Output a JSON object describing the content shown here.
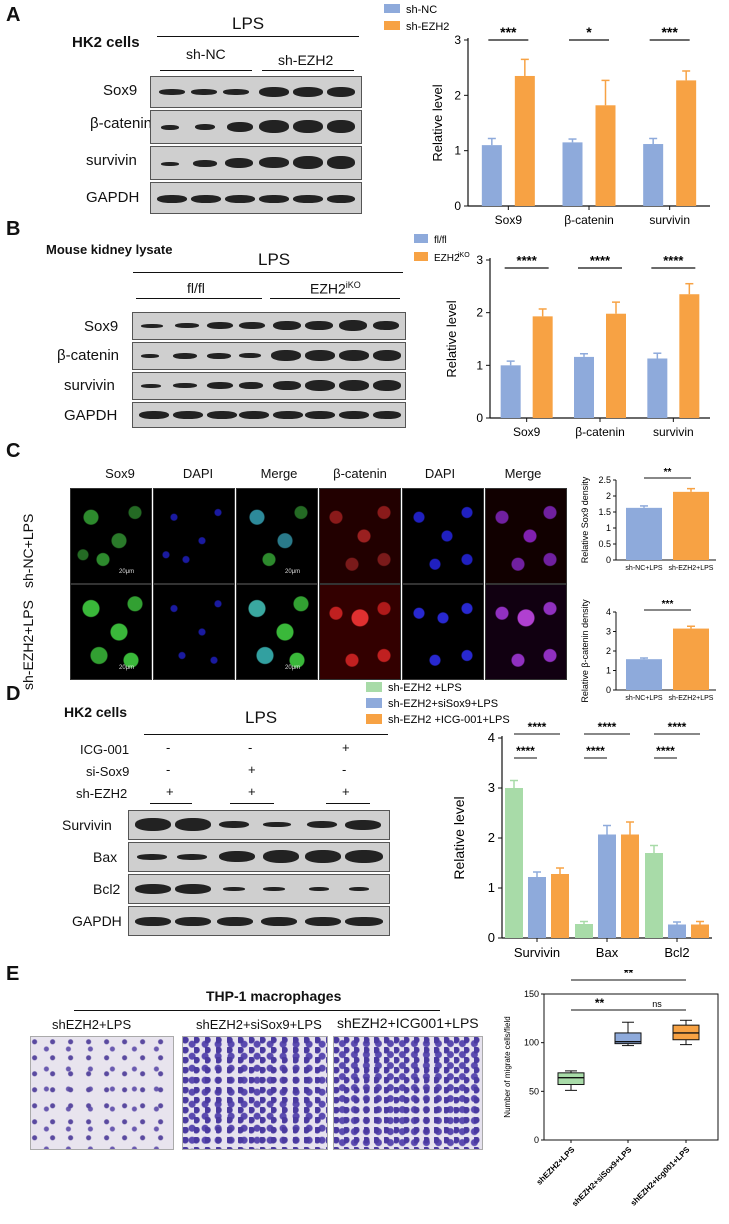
{
  "panels": {
    "A": {
      "letter": "A",
      "cell_label": "HK2 cells",
      "treatment": "LPS",
      "groups": [
        "sh-NC",
        "sh-EZH2"
      ],
      "rows": [
        "Sox9",
        "β-catenin",
        "survivin",
        "GAPDH"
      ]
    },
    "B": {
      "letter": "B",
      "cell_label": "Mouse kidney lysate",
      "treatment": "LPS",
      "groups": [
        "fl/fl",
        "EZH2"
      ],
      "group_sup": "iKO",
      "rows": [
        "Sox9",
        "β-catenin",
        "survivin",
        "GAPDH"
      ]
    },
    "C": {
      "letter": "C",
      "col_headers": [
        "Sox9",
        "DAPI",
        "Merge",
        "β-catenin",
        "DAPI",
        "Merge"
      ],
      "row_labels": [
        "sh-NC+LPS",
        "sh-EZH2+LPS"
      ],
      "scalebar": "20μm"
    },
    "D": {
      "letter": "D",
      "cell_label": "HK2 cells",
      "treatment": "LPS",
      "conditions": [
        {
          "name": "ICG-001",
          "marks": [
            "-",
            "-",
            "+"
          ]
        },
        {
          "name": "si-Sox9",
          "marks": [
            "-",
            "+",
            "-"
          ]
        },
        {
          "name": "sh-EZH2",
          "marks": [
            "+",
            "+",
            "+"
          ]
        }
      ],
      "rows": [
        "Survivin",
        "Bax",
        "Bcl2",
        "GAPDH"
      ]
    },
    "E": {
      "letter": "E",
      "title": "THP-1 macrophages",
      "images": [
        "shEZH2+LPS",
        "shEZH2+siSox9+LPS",
        "shEZH2+ICG001+LPS"
      ]
    }
  },
  "colors": {
    "blue": "#8eaadb",
    "orange": "#f7a244",
    "green": "#a8dba8"
  },
  "chart_data": [
    {
      "id": "A",
      "type": "bar",
      "categories": [
        "Sox9",
        "β-catenin",
        "survivin"
      ],
      "series": [
        {
          "name": "sh-NC",
          "color": "#8eaadb",
          "values": [
            1.1,
            1.15,
            1.12
          ],
          "errors": [
            0.12,
            0.06,
            0.1
          ]
        },
        {
          "name": "sh-EZH2",
          "color": "#f7a244",
          "values": [
            2.35,
            1.82,
            2.27
          ],
          "errors": [
            0.3,
            0.45,
            0.17
          ]
        }
      ],
      "ylabel": "Relative level",
      "ylim": [
        0,
        3
      ],
      "yticks": [
        0,
        1,
        2,
        3
      ],
      "significance": [
        "***",
        "*",
        "***"
      ]
    },
    {
      "id": "B",
      "type": "bar",
      "categories": [
        "Sox9",
        "β-catenin",
        "survivin"
      ],
      "series": [
        {
          "name": "fl/fl",
          "color": "#8eaadb",
          "values": [
            1.0,
            1.16,
            1.13
          ],
          "errors": [
            0.08,
            0.06,
            0.1
          ]
        },
        {
          "name": "EZH2iKO",
          "color": "#f7a244",
          "values": [
            1.93,
            1.98,
            2.35
          ],
          "errors": [
            0.14,
            0.22,
            0.2
          ]
        }
      ],
      "ylabel": "Relative level",
      "ylim": [
        0,
        3
      ],
      "yticks": [
        0,
        1,
        2,
        3
      ],
      "significance": [
        "****",
        "****",
        "****"
      ]
    },
    {
      "id": "C1",
      "type": "bar",
      "categories": [
        "sh-NC+LPS",
        "sh-EZH2+LPS"
      ],
      "values": [
        1.63,
        2.13
      ],
      "errors": [
        0.06,
        0.1
      ],
      "colors": [
        "#8eaadb",
        "#f7a244"
      ],
      "ylabel": "Relative Sox9 density",
      "ylim": [
        0,
        2.5
      ],
      "yticks": [
        0,
        0.5,
        1.0,
        1.5,
        2.0,
        2.5
      ],
      "significance": "**"
    },
    {
      "id": "C2",
      "type": "bar",
      "categories": [
        "sh-NC+LPS",
        "sh-EZH2+LPS"
      ],
      "values": [
        1.58,
        3.15
      ],
      "errors": [
        0.06,
        0.12
      ],
      "colors": [
        "#8eaadb",
        "#f7a244"
      ],
      "ylabel": "Relative β-catenin density",
      "ylim": [
        0,
        4
      ],
      "yticks": [
        0,
        1,
        2,
        3,
        4
      ],
      "significance": "***"
    },
    {
      "id": "D",
      "type": "bar",
      "categories": [
        "Survivin",
        "Bax",
        "Bcl2"
      ],
      "series": [
        {
          "name": "sh-EZH2 +LPS",
          "color": "#a8dba8",
          "values": [
            3.0,
            0.28,
            1.7
          ],
          "errors": [
            0.15,
            0.05,
            0.15
          ]
        },
        {
          "name": "sh-EZH2+siSox9+LPS",
          "color": "#8eaadb",
          "values": [
            1.22,
            2.07,
            0.27
          ],
          "errors": [
            0.1,
            0.18,
            0.05
          ]
        },
        {
          "name": "sh-EZH2 +ICG-001+LPS",
          "color": "#f7a244",
          "values": [
            1.28,
            2.07,
            0.27
          ],
          "errors": [
            0.12,
            0.25,
            0.06
          ]
        }
      ],
      "ylabel": "Relative level",
      "ylim": [
        0,
        4
      ],
      "yticks": [
        0,
        1,
        2,
        3,
        4
      ],
      "significance_top": [
        "****",
        "****",
        "****"
      ],
      "significance_bottom": [
        "****",
        "****",
        "****"
      ]
    },
    {
      "id": "E",
      "type": "box",
      "categories": [
        "shEZH2+LPS",
        "shEZH2+siSox9+LPS",
        "shEZH2+Icg001+LPS"
      ],
      "boxes": [
        {
          "min": 51,
          "q1": 57,
          "median": 64,
          "q3": 69,
          "max": 71,
          "color": "#a8dba8"
        },
        {
          "min": 97,
          "q1": 99,
          "median": 101,
          "q3": 110,
          "max": 121,
          "color": "#8eaadb"
        },
        {
          "min": 98,
          "q1": 103,
          "median": 110,
          "q3": 118,
          "max": 123,
          "color": "#f7a244"
        }
      ],
      "ylabel": "Number of migrate cells/field",
      "ylim": [
        0,
        150
      ],
      "yticks": [
        0,
        50,
        100,
        150
      ],
      "comparisons": [
        {
          "from": 1,
          "to": 3,
          "label": "**"
        },
        {
          "from": 1,
          "to": 2,
          "label": "**"
        },
        {
          "from": 2,
          "to": 3,
          "label": "ns"
        }
      ]
    }
  ]
}
